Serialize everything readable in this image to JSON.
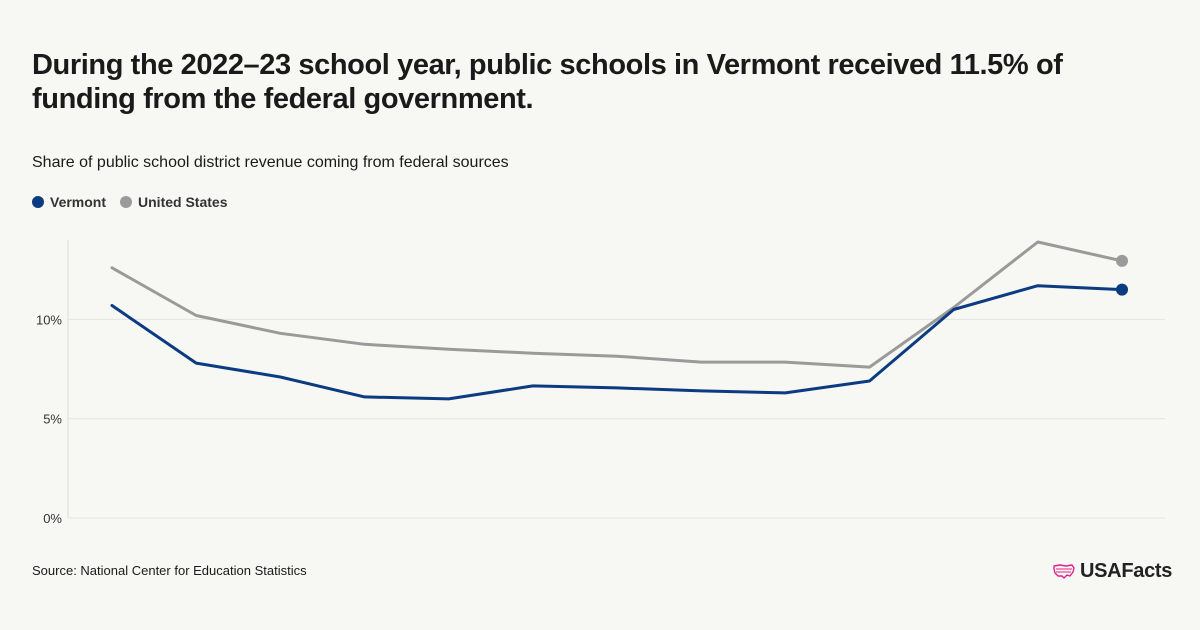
{
  "title": "During the 2022–23 school year, public schools in Vermont received 11.5% of funding from the federal government.",
  "subtitle": "Share of public school district revenue coming from federal sources",
  "source": "Source: National Center for Education Statistics",
  "logo_text": "USAFacts",
  "colors": {
    "vermont": "#0b3b80",
    "united_states": "#9a9a9a",
    "grid": "#e4e4df",
    "axis": "#dcdcd6",
    "background": "#f7f7f4",
    "logo_accent": "#e0218a"
  },
  "chart_data": {
    "type": "line",
    "ylim": [
      0,
      14
    ],
    "yticks": [
      0,
      5,
      10
    ],
    "ytick_labels": [
      "0%",
      "5%",
      "10%"
    ],
    "x_count": 13,
    "legend_position": "top-left",
    "grid": true,
    "series": [
      {
        "name": "Vermont",
        "color": "#0b3b80",
        "values": [
          10.7,
          7.8,
          7.1,
          6.1,
          6.0,
          6.65,
          6.55,
          6.4,
          6.3,
          6.9,
          10.5,
          11.7,
          11.5
        ]
      },
      {
        "name": "United States",
        "color": "#9a9a9a",
        "values": [
          12.6,
          10.2,
          9.3,
          8.75,
          8.5,
          8.3,
          8.15,
          7.85,
          7.85,
          7.6,
          10.6,
          13.9,
          12.95
        ]
      }
    ]
  }
}
